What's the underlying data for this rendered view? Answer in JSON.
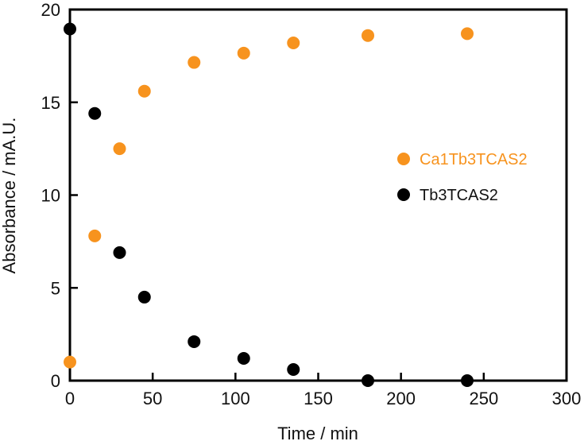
{
  "chart_data": {
    "type": "scatter",
    "xlabel": "Time / min",
    "ylabel": "Absorbance / mA.U.",
    "xlim": [
      0,
      300
    ],
    "ylim": [
      0,
      20
    ],
    "x_ticks": [
      "0",
      "50",
      "100",
      "150",
      "200",
      "250",
      "300"
    ],
    "y_ticks": [
      "0",
      "5",
      "10",
      "15",
      "20"
    ],
    "grid": false,
    "legend_position": "right-center",
    "series": [
      {
        "name": "Ca1Tb3TCAS2",
        "color": "#f7931e",
        "points": [
          {
            "x": 0,
            "y": 1.0
          },
          {
            "x": 15,
            "y": 7.8
          },
          {
            "x": 30,
            "y": 12.5
          },
          {
            "x": 45,
            "y": 15.6
          },
          {
            "x": 75,
            "y": 17.15
          },
          {
            "x": 105,
            "y": 17.65
          },
          {
            "x": 135,
            "y": 18.2
          },
          {
            "x": 180,
            "y": 18.6
          },
          {
            "x": 240,
            "y": 18.7
          }
        ]
      },
      {
        "name": "Tb3TCAS2",
        "color": "#000000",
        "points": [
          {
            "x": 0,
            "y": 18.95
          },
          {
            "x": 15,
            "y": 14.4
          },
          {
            "x": 30,
            "y": 6.9
          },
          {
            "x": 45,
            "y": 4.5
          },
          {
            "x": 75,
            "y": 2.1
          },
          {
            "x": 105,
            "y": 1.2
          },
          {
            "x": 135,
            "y": 0.6
          },
          {
            "x": 180,
            "y": 0.0
          },
          {
            "x": 240,
            "y": 0.0
          }
        ]
      }
    ]
  }
}
